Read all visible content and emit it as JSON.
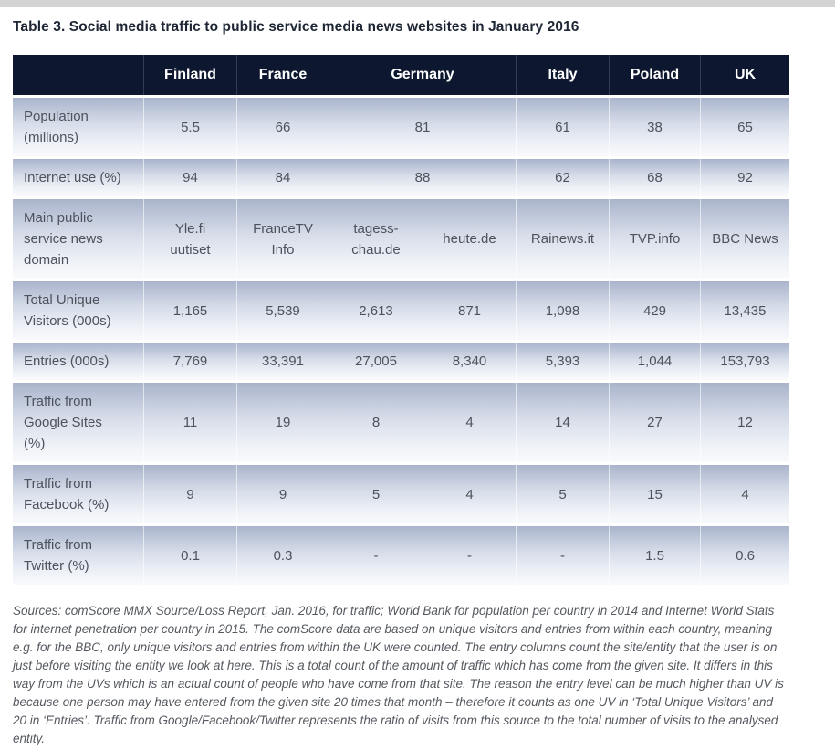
{
  "page": {
    "title": "Table 3. Social media traffic to public service media news websites in January 2016",
    "sources_note": "Sources: comScore MMX Source/Loss Report, Jan. 2016, for traffic; World Bank for population per country in 2014 and Internet World Stats for internet penetration per country in 2015. The comScore data are based on unique visitors and entries from within each country, meaning e.g. for the BBC, only unique visitors and entries from within the UK were counted. The entry columns count the site/entity that the user is on just before visiting the entity we look at here. This is a total count of the amount of traffic which has come from the given site. It differs in this way from the UVs which is an actual count of people who have come from that site. The reason the entry level can be much higher than UV is because one person may have entered from the given site 20 times that month – therefore it counts as one UV in ‘Total Unique Visitors’ and 20 in ‘Entries’. Traffic from Google/Facebook/Twitter represents the ratio of visits from this source to the total number of visits to the analysed entity."
  },
  "table": {
    "header": [
      {
        "label": "Finland",
        "span": 1
      },
      {
        "label": "France",
        "span": 1
      },
      {
        "label": "Germany",
        "span": 2
      },
      {
        "label": "Italy",
        "span": 1
      },
      {
        "label": "Poland",
        "span": 1
      },
      {
        "label": "UK",
        "span": 1
      }
    ],
    "rows": [
      {
        "label": "Population\n(millions)",
        "cells": [
          {
            "value": "5.5"
          },
          {
            "value": "66"
          },
          {
            "value": "81",
            "span": 2
          },
          {
            "value": "61"
          },
          {
            "value": "38"
          },
          {
            "value": "65"
          }
        ]
      },
      {
        "label": "Internet use (%)",
        "cells": [
          {
            "value": "94"
          },
          {
            "value": "84"
          },
          {
            "value": "88",
            "span": 2
          },
          {
            "value": "62"
          },
          {
            "value": "68"
          },
          {
            "value": "92"
          }
        ]
      },
      {
        "label": "Main public\nservice news\ndomain",
        "cells": [
          {
            "value": "Yle.fi\nuutiset"
          },
          {
            "value": "FranceTV\nInfo"
          },
          {
            "value": "tagess-\nchau.de"
          },
          {
            "value": "heute.de"
          },
          {
            "value": "Rainews.it"
          },
          {
            "value": "TVP.info"
          },
          {
            "value": "BBC News"
          }
        ]
      },
      {
        "label": "Total Unique\nVisitors (000s)",
        "cells": [
          {
            "value": "1,165"
          },
          {
            "value": "5,539"
          },
          {
            "value": "2,613"
          },
          {
            "value": "871"
          },
          {
            "value": "1,098"
          },
          {
            "value": "429"
          },
          {
            "value": "13,435"
          }
        ]
      },
      {
        "label": "Entries (000s)",
        "cells": [
          {
            "value": "7,769"
          },
          {
            "value": "33,391"
          },
          {
            "value": "27,005"
          },
          {
            "value": "8,340"
          },
          {
            "value": "5,393"
          },
          {
            "value": "1,044"
          },
          {
            "value": "153,793"
          }
        ]
      },
      {
        "label": "Traffic from\nGoogle Sites\n(%)",
        "cells": [
          {
            "value": "11"
          },
          {
            "value": "19"
          },
          {
            "value": "8"
          },
          {
            "value": "4"
          },
          {
            "value": "14"
          },
          {
            "value": "27"
          },
          {
            "value": "12"
          }
        ]
      },
      {
        "label": "Traffic from\nFacebook (%)",
        "cells": [
          {
            "value": "9"
          },
          {
            "value": "9"
          },
          {
            "value": "5"
          },
          {
            "value": "4"
          },
          {
            "value": "5"
          },
          {
            "value": "15"
          },
          {
            "value": "4"
          }
        ]
      },
      {
        "label": "Traffic from\nTwitter (%)",
        "cells": [
          {
            "value": "0.1"
          },
          {
            "value": "0.3"
          },
          {
            "value": "-"
          },
          {
            "value": "-"
          },
          {
            "value": "-"
          },
          {
            "value": "1.5"
          },
          {
            "value": "0.6"
          }
        ]
      }
    ]
  },
  "colors": {
    "header_bg": "#0d1830",
    "header_text": "#ffffff",
    "row_gradient_top": "#a9b4cc",
    "row_gradient_bottom": "#f9fafc",
    "cell_text": "#4d535d",
    "title_text": "#1e2634",
    "note_text": "#55595f",
    "top_strip": "#d4d4d4"
  }
}
